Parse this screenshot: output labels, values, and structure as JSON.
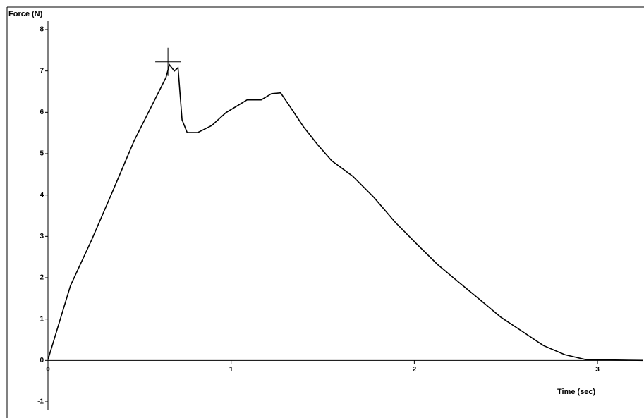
{
  "chart_data": {
    "type": "line",
    "y_label": "Force (N)",
    "x_label": "Time (sec)",
    "x": [
      0,
      0.123,
      0.239,
      0.355,
      0.47,
      0.586,
      0.644,
      0.663,
      0.69,
      0.71,
      0.732,
      0.76,
      0.817,
      0.894,
      0.971,
      1.087,
      1.164,
      1.22,
      1.27,
      1.318,
      1.395,
      1.472,
      1.549,
      1.665,
      1.78,
      1.896,
      2.01,
      2.127,
      2.243,
      2.358,
      2.474,
      2.59,
      2.705,
      2.821,
      2.936,
      3.25
    ],
    "series": [
      {
        "color": "#000000",
        "values": [
          0.02,
          1.81,
          2.92,
          4.11,
          5.31,
          6.33,
          6.84,
          7.15,
          7.0,
          7.08,
          5.82,
          5.51,
          5.51,
          5.68,
          5.99,
          6.3,
          6.3,
          6.45,
          6.47,
          6.16,
          5.65,
          5.22,
          4.83,
          4.45,
          3.94,
          3.34,
          2.83,
          2.32,
          1.89,
          1.47,
          1.04,
          0.7,
          0.36,
          0.14,
          0.02,
          0
        ]
      }
    ],
    "marker": {
      "x": 0.655,
      "y": 7.22
    },
    "xlim": [
      0,
      3.25
    ],
    "xticks": [
      0,
      1,
      2,
      3
    ],
    "ylim": [
      -1,
      8
    ],
    "yticks": [
      -1,
      0,
      1,
      2,
      3,
      4,
      5,
      6,
      7,
      8
    ]
  }
}
